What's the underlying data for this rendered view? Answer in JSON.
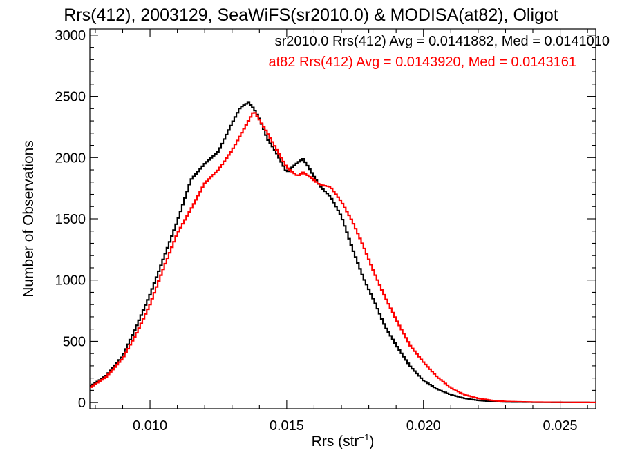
{
  "chart_data": {
    "type": "line",
    "step": true,
    "title": "Rrs(412), 2003129, SeaWiFS(sr2010.0) & MODISA(at82), Oligot",
    "xlabel_main": "Rrs (str",
    "xlabel_sup": "−1",
    "xlabel_close": ")",
    "ylabel": "Number of Observations",
    "xlim": [
      0.0078,
      0.0263
    ],
    "ylim": [
      -50,
      3050
    ],
    "x_ticks": [
      "0.010",
      "0.015",
      "0.020",
      "0.025"
    ],
    "x_tick_values": [
      0.01,
      0.015,
      0.02,
      0.025
    ],
    "y_ticks": [
      "0",
      "500",
      "1000",
      "1500",
      "2000",
      "2500",
      "3000"
    ],
    "y_tick_values": [
      0,
      500,
      1000,
      1500,
      2000,
      2500,
      3000
    ],
    "annotations": [
      {
        "text": "sr2010.0 Rrs(412) Avg = 0.0141882, Med = 0.0141010",
        "color": "#000000"
      },
      {
        "text": "at82 Rrs(412) Avg = 0.0143920, Med = 0.0143161",
        "color": "#ff0000"
      }
    ],
    "series": [
      {
        "color": "#000000",
        "x": [
          0.0078,
          0.0084,
          0.009,
          0.0095,
          0.01,
          0.0105,
          0.011,
          0.0115,
          0.012,
          0.0125,
          0.013,
          0.0133,
          0.0136,
          0.0138,
          0.014,
          0.0143,
          0.0146,
          0.015,
          0.0154,
          0.0156,
          0.0158,
          0.0162,
          0.0166,
          0.017,
          0.0174,
          0.0178,
          0.0182,
          0.0186,
          0.019,
          0.0195,
          0.02,
          0.0205,
          0.021,
          0.0215,
          0.022,
          0.0225,
          0.023,
          0.024,
          0.025,
          0.0263
        ],
        "values": [
          130,
          220,
          380,
          620,
          880,
          1180,
          1480,
          1820,
          1950,
          2050,
          2280,
          2410,
          2450,
          2400,
          2320,
          2150,
          2050,
          1880,
          1960,
          1990,
          1920,
          1770,
          1680,
          1520,
          1260,
          1020,
          830,
          620,
          470,
          300,
          180,
          110,
          65,
          35,
          18,
          10,
          5,
          3,
          2,
          1
        ]
      },
      {
        "color": "#ff0000",
        "x": [
          0.0078,
          0.0084,
          0.009,
          0.0095,
          0.01,
          0.0105,
          0.011,
          0.0115,
          0.012,
          0.0125,
          0.013,
          0.0133,
          0.0136,
          0.0138,
          0.014,
          0.0143,
          0.0146,
          0.015,
          0.0154,
          0.0156,
          0.0158,
          0.0162,
          0.0166,
          0.017,
          0.0174,
          0.0178,
          0.0182,
          0.0186,
          0.019,
          0.0195,
          0.02,
          0.0205,
          0.021,
          0.0215,
          0.022,
          0.0225,
          0.023,
          0.024,
          0.025,
          0.0263
        ],
        "values": [
          120,
          210,
          360,
          560,
          800,
          1100,
          1380,
          1580,
          1790,
          1900,
          2060,
          2180,
          2300,
          2380,
          2310,
          2200,
          2080,
          1920,
          1850,
          1880,
          1850,
          1780,
          1760,
          1640,
          1480,
          1280,
          1060,
          860,
          680,
          470,
          330,
          210,
          120,
          65,
          35,
          18,
          9,
          4,
          2,
          1
        ]
      }
    ]
  }
}
